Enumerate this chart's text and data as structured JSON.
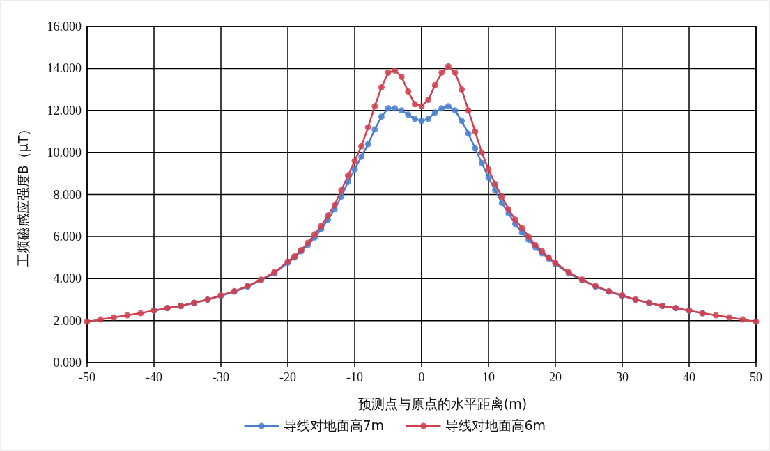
{
  "chart_data": {
    "type": "line",
    "xlabel": "预测点与原点的水平距离(m)",
    "ylabel": "工频磁感应强度B（μT）",
    "x": [
      -50,
      -48,
      -46,
      -44,
      -42,
      -40,
      -38,
      -36,
      -34,
      -32,
      -30,
      -28,
      -26,
      -24,
      -22,
      -20,
      -19,
      -18,
      -17,
      -16,
      -15,
      -14,
      -13,
      -12,
      -11,
      -10,
      -9,
      -8,
      -7,
      -6,
      -5,
      -4,
      -3,
      -2,
      -1,
      0,
      1,
      2,
      3,
      4,
      5,
      6,
      7,
      8,
      9,
      10,
      11,
      12,
      13,
      14,
      15,
      16,
      17,
      18,
      19,
      20,
      22,
      24,
      26,
      28,
      30,
      32,
      34,
      36,
      38,
      40,
      42,
      44,
      46,
      48,
      50
    ],
    "series": [
      {
        "name": "导线对地面高7m",
        "color": "#4a7fd0",
        "values": [
          null,
          null,
          null,
          null,
          null,
          2.47,
          2.59,
          2.69,
          2.84,
          2.99,
          3.18,
          3.38,
          3.62,
          3.92,
          4.25,
          4.75,
          5.0,
          5.3,
          5.6,
          5.95,
          6.35,
          6.8,
          7.3,
          7.9,
          8.6,
          9.2,
          9.8,
          10.4,
          11.1,
          11.7,
          12.1,
          12.1,
          12.0,
          11.8,
          11.6,
          11.5,
          11.6,
          11.9,
          12.1,
          12.2,
          12.0,
          11.5,
          10.9,
          10.2,
          9.5,
          8.8,
          8.2,
          7.6,
          7.1,
          6.6,
          6.2,
          5.85,
          5.5,
          5.2,
          4.95,
          4.7,
          4.25,
          3.92,
          3.62,
          3.38,
          3.18,
          2.99,
          2.84,
          2.69,
          2.59,
          2.47,
          2.35,
          null,
          null,
          null,
          null
        ]
      },
      {
        "name": "导线对地面高6m",
        "color": "#d0404f",
        "values": [
          1.95,
          2.05,
          2.15,
          2.25,
          2.35,
          2.48,
          2.6,
          2.7,
          2.85,
          3.0,
          3.2,
          3.4,
          3.65,
          3.95,
          4.3,
          4.8,
          5.05,
          5.35,
          5.7,
          6.1,
          6.5,
          7.0,
          7.5,
          8.2,
          8.9,
          9.6,
          10.3,
          11.2,
          12.2,
          13.1,
          13.8,
          13.9,
          13.6,
          12.9,
          12.3,
          12.2,
          12.5,
          13.2,
          13.8,
          14.1,
          13.8,
          13.0,
          12.0,
          11.0,
          10.0,
          9.2,
          8.5,
          7.9,
          7.3,
          6.8,
          6.4,
          6.0,
          5.6,
          5.3,
          5.0,
          4.75,
          4.3,
          3.95,
          3.65,
          3.4,
          3.2,
          3.0,
          2.85,
          2.7,
          2.6,
          2.48,
          2.35,
          2.25,
          2.15,
          2.05,
          1.95
        ]
      }
    ],
    "xlim": [
      -50,
      50
    ],
    "xticks": [
      -50,
      -40,
      -30,
      -20,
      -10,
      0,
      10,
      20,
      30,
      40,
      50
    ],
    "ylim": [
      0,
      16
    ],
    "yticks": [
      {
        "value": 0,
        "label": "0.000"
      },
      {
        "value": 2,
        "label": "2.000"
      },
      {
        "value": 4,
        "label": "4.000"
      },
      {
        "value": 6,
        "label": "6.000"
      },
      {
        "value": 8,
        "label": "8.000"
      },
      {
        "value": 10,
        "label": "10.000"
      },
      {
        "value": 12,
        "label": "12.000"
      },
      {
        "value": 14,
        "label": "14.000"
      },
      {
        "value": 16,
        "label": "16.000"
      }
    ],
    "grid": true,
    "legend": "bottom",
    "marker": "circle"
  }
}
